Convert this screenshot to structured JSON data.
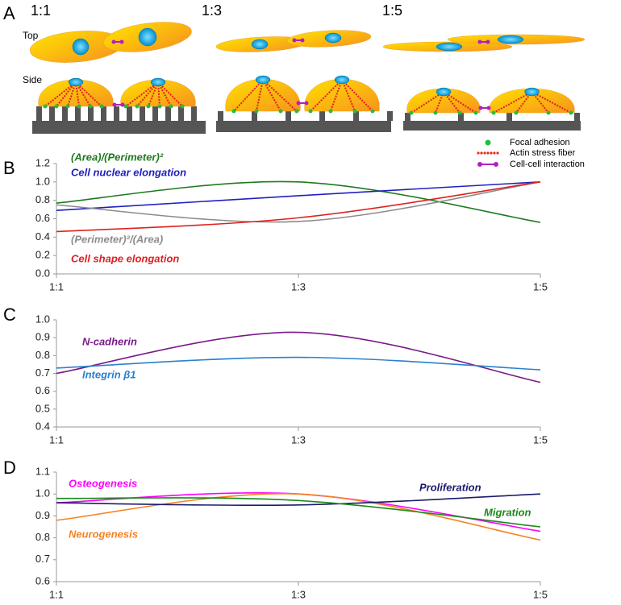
{
  "figure": {
    "panel_labels": [
      "A",
      "B",
      "C",
      "D"
    ],
    "panel_a": {
      "ratios": [
        "1:1",
        "1:3",
        "1:5"
      ],
      "views": [
        "Top",
        "Side"
      ],
      "legend": [
        "Focal adhesion",
        "Actin stress fiber",
        "Cell-cell interaction"
      ]
    }
  },
  "chart_data": [
    {
      "type": "line",
      "smooth": true,
      "categories": [
        "1:1",
        "1:3",
        "1:5"
      ],
      "ylim": [
        0,
        1.2
      ],
      "yticks": [
        {
          "value": 0,
          "label": "0.0"
        },
        0.2,
        0.4,
        0.6,
        0.8,
        {
          "value": 1,
          "label": "1.0"
        },
        1.2
      ],
      "series": [
        {
          "name": "(Area)/(Perimeter)²",
          "color": "#1f7a1f",
          "values": [
            0.77,
            1.0,
            0.56
          ]
        },
        {
          "name": "Cell nuclear elongation",
          "color": "#2020c0",
          "values": [
            0.69,
            0.85,
            1.0
          ]
        },
        {
          "name": "(Perimeter)²/(Area)",
          "color": "#8c8c8c",
          "values": [
            0.75,
            0.57,
            1.0
          ]
        },
        {
          "name": "Cell shape elongation",
          "color": "#e02020",
          "values": [
            0.46,
            0.61,
            1.0
          ]
        }
      ]
    },
    {
      "type": "line",
      "smooth": true,
      "categories": [
        "1:1",
        "1:3",
        "1:5"
      ],
      "ylim": [
        0.4,
        1.0
      ],
      "yticks": [
        0.4,
        0.5,
        0.6,
        0.7,
        0.8,
        0.9,
        {
          "value": 1,
          "label": "1.0"
        }
      ],
      "series": [
        {
          "name": "N-cadherin",
          "color": "#7a1a8a",
          "values": [
            0.7,
            0.93,
            0.65
          ]
        },
        {
          "name": "Integrin β1",
          "color": "#2a80d0",
          "values": [
            0.73,
            0.79,
            0.72
          ]
        }
      ]
    },
    {
      "type": "line",
      "smooth": true,
      "categories": [
        "1:1",
        "1:3",
        "1:5"
      ],
      "ylim": [
        0.6,
        1.1
      ],
      "yticks": [
        0.6,
        0.7,
        0.8,
        0.9,
        {
          "value": 1,
          "label": "1.0"
        },
        1.1
      ],
      "series": [
        {
          "name": "Osteogenesis",
          "color": "#ff00ff",
          "values": [
            0.96,
            1.0,
            0.83
          ]
        },
        {
          "name": "Neurogenesis",
          "color": "#f58220",
          "values": [
            0.88,
            1.0,
            0.79
          ]
        },
        {
          "name": "Proliferation",
          "color": "#1a1a6e",
          "values": [
            0.96,
            0.95,
            1.0
          ]
        },
        {
          "name": "Migration",
          "color": "#1a8a1a",
          "values": [
            0.98,
            0.97,
            0.85
          ]
        }
      ]
    }
  ]
}
